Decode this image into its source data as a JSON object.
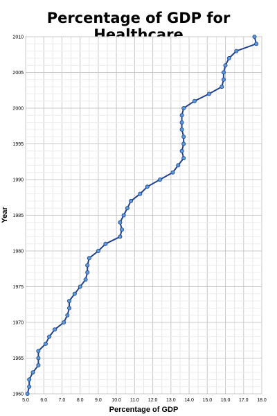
{
  "chart_data": {
    "type": "line",
    "title": "Percentage of GDP for Healthcare",
    "xlabel": "Percentage of GDP",
    "ylabel": "Year",
    "xlim": [
      5.0,
      18.0
    ],
    "ylim": [
      1960,
      2010
    ],
    "x_ticks": [
      "5.0",
      "6.0",
      "7.0",
      "8.0",
      "9.0",
      "10.0",
      "11.0",
      "12.0",
      "13.0",
      "14.0",
      "15.0",
      "16.0",
      "17.0",
      "18.0"
    ],
    "y_ticks": [
      "1960",
      "1965",
      "1970",
      "1975",
      "1980",
      "1985",
      "1990",
      "1995",
      "2000",
      "2005",
      "2010"
    ],
    "grid": true,
    "series": [
      {
        "color": "#1f3f8f",
        "marker_color": "#5b9bd5",
        "points": [
          {
            "x": 5.1,
            "y": 1960
          },
          {
            "x": 5.2,
            "y": 1961
          },
          {
            "x": 5.2,
            "y": 1962
          },
          {
            "x": 5.4,
            "y": 1963
          },
          {
            "x": 5.7,
            "y": 1964
          },
          {
            "x": 5.7,
            "y": 1965
          },
          {
            "x": 5.7,
            "y": 1966
          },
          {
            "x": 6.1,
            "y": 1967
          },
          {
            "x": 6.3,
            "y": 1968
          },
          {
            "x": 6.6,
            "y": 1969
          },
          {
            "x": 7.1,
            "y": 1970
          },
          {
            "x": 7.3,
            "y": 1971
          },
          {
            "x": 7.4,
            "y": 1972
          },
          {
            "x": 7.4,
            "y": 1973
          },
          {
            "x": 7.7,
            "y": 1974
          },
          {
            "x": 8.0,
            "y": 1975
          },
          {
            "x": 8.3,
            "y": 1976
          },
          {
            "x": 8.4,
            "y": 1977
          },
          {
            "x": 8.4,
            "y": 1978
          },
          {
            "x": 8.5,
            "y": 1979
          },
          {
            "x": 9.0,
            "y": 1980
          },
          {
            "x": 9.4,
            "y": 1981
          },
          {
            "x": 10.2,
            "y": 1982
          },
          {
            "x": 10.3,
            "y": 1983
          },
          {
            "x": 10.2,
            "y": 1984
          },
          {
            "x": 10.4,
            "y": 1985
          },
          {
            "x": 10.6,
            "y": 1986
          },
          {
            "x": 10.8,
            "y": 1987
          },
          {
            "x": 11.3,
            "y": 1988
          },
          {
            "x": 11.7,
            "y": 1989
          },
          {
            "x": 12.4,
            "y": 1990
          },
          {
            "x": 13.1,
            "y": 1991
          },
          {
            "x": 13.4,
            "y": 1992
          },
          {
            "x": 13.7,
            "y": 1993
          },
          {
            "x": 13.6,
            "y": 1994
          },
          {
            "x": 13.7,
            "y": 1995
          },
          {
            "x": 13.7,
            "y": 1996
          },
          {
            "x": 13.6,
            "y": 1997
          },
          {
            "x": 13.6,
            "y": 1998
          },
          {
            "x": 13.6,
            "y": 1999
          },
          {
            "x": 13.7,
            "y": 2000
          },
          {
            "x": 14.3,
            "y": 2001
          },
          {
            "x": 15.1,
            "y": 2002
          },
          {
            "x": 15.8,
            "y": 2003
          },
          {
            "x": 15.9,
            "y": 2004
          },
          {
            "x": 15.9,
            "y": 2005
          },
          {
            "x": 16.0,
            "y": 2006
          },
          {
            "x": 16.2,
            "y": 2007
          },
          {
            "x": 16.6,
            "y": 2008
          },
          {
            "x": 17.7,
            "y": 2009
          },
          {
            "x": 17.6,
            "y": 2010
          }
        ]
      }
    ]
  }
}
